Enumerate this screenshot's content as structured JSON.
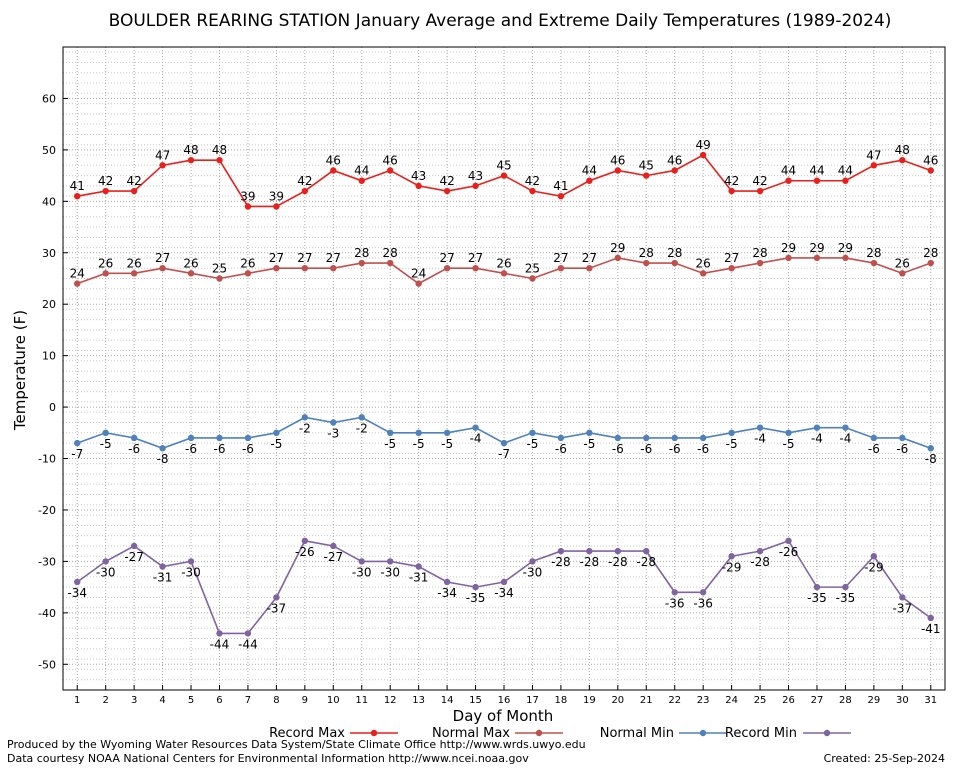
{
  "chart_data": {
    "type": "line",
    "title": "BOULDER REARING STATION January Average and Extreme Daily Temperatures (1989-2024)",
    "xlabel": "Day of Month",
    "ylabel": "Temperature (F)",
    "xlim": [
      0.5,
      31.5
    ],
    "ylim": [
      -55,
      70
    ],
    "yticks": [
      -50,
      -40,
      -30,
      -20,
      -10,
      0,
      10,
      20,
      30,
      40,
      50,
      60
    ],
    "x": [
      1,
      2,
      3,
      4,
      5,
      6,
      7,
      8,
      9,
      10,
      11,
      12,
      13,
      14,
      15,
      16,
      17,
      18,
      19,
      20,
      21,
      22,
      23,
      24,
      25,
      26,
      27,
      28,
      29,
      30,
      31
    ],
    "grid": true,
    "legend_position": "bottom",
    "series": [
      {
        "name": "Record Max",
        "color": "#e8201c",
        "label_position": "above",
        "values": [
          41,
          42,
          42,
          47,
          48,
          48,
          39,
          39,
          42,
          46,
          44,
          46,
          43,
          42,
          43,
          45,
          42,
          41,
          44,
          46,
          45,
          46,
          49,
          42,
          42,
          44,
          44,
          44,
          47,
          48,
          46
        ]
      },
      {
        "name": "Normal Max",
        "color": "#c0504d",
        "label_position": "above",
        "values": [
          24,
          26,
          26,
          27,
          26,
          25,
          26,
          27,
          27,
          27,
          28,
          28,
          24,
          27,
          27,
          26,
          25,
          27,
          27,
          29,
          28,
          28,
          26,
          27,
          28,
          29,
          29,
          29,
          28,
          26,
          28
        ]
      },
      {
        "name": "Normal Min",
        "color": "#4f81bd",
        "label_position": "below",
        "values": [
          -7,
          -5,
          -6,
          -8,
          -6,
          -6,
          -6,
          -5,
          -2,
          -3,
          -2,
          -5,
          -5,
          -5,
          -4,
          -7,
          -5,
          -6,
          -5,
          -6,
          -6,
          -6,
          -6,
          -5,
          -4,
          -5,
          -4,
          -4,
          -6,
          -6,
          -8
        ]
      },
      {
        "name": "Record Min",
        "color": "#8064a2",
        "label_position": "below",
        "values": [
          -34,
          -30,
          -27,
          -31,
          -30,
          -44,
          -44,
          -37,
          -26,
          -27,
          -30,
          -30,
          -31,
          -34,
          -35,
          -34,
          -30,
          -28,
          -28,
          -28,
          -28,
          -36,
          -36,
          -29,
          -28,
          -26,
          -35,
          -35,
          -29,
          -37,
          -41
        ]
      }
    ]
  },
  "footer": {
    "credit_line1": "Produced by the Wyoming Water Resources Data System/State Climate Office http://www.wrds.uwyo.edu",
    "credit_line2": "Data courtesy NOAA National Centers for Environmental Information http://www.ncei.noaa.gov",
    "created": "Created:  25-Sep-2024"
  }
}
